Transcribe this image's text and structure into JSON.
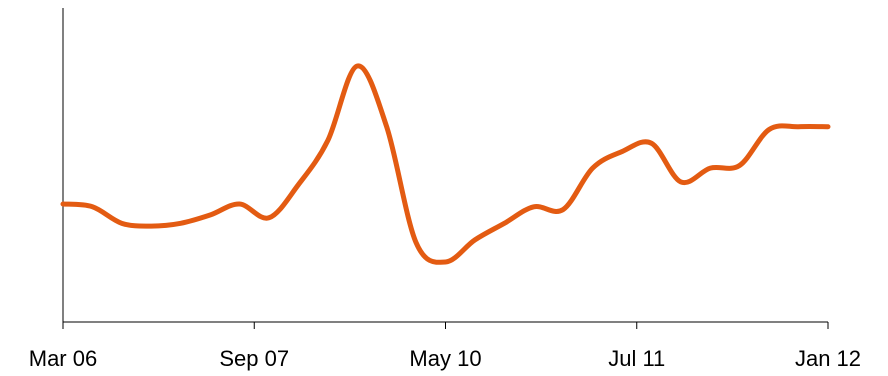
{
  "chart_data": {
    "type": "line",
    "title": "",
    "xlabel": "",
    "ylabel": "",
    "x_tick_labels": [
      "Mar 06",
      "Sep 07",
      "May 10",
      "Jul 11",
      "Jan 12"
    ],
    "y_axis_tick_labels": "none",
    "grid": false,
    "legend": "none",
    "series": [
      {
        "color": "#e35b12",
        "values": [
          50,
          49,
          43,
          42,
          43,
          46,
          50,
          45,
          57,
          73,
          100,
          78,
          36,
          29,
          37,
          43,
          49,
          48,
          63,
          69,
          72,
          58,
          63,
          64,
          77,
          78,
          78
        ]
      }
    ],
    "ylim": [
      0,
      110
    ]
  }
}
